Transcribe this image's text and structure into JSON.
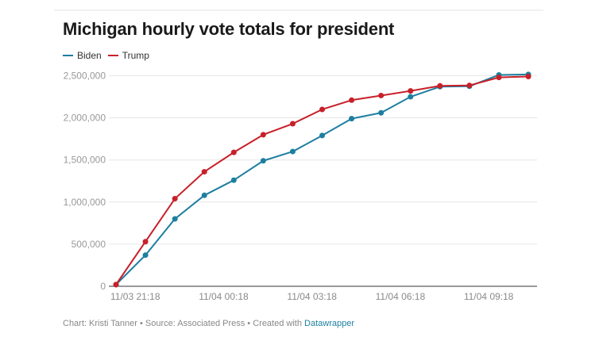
{
  "chart_data": {
    "type": "line",
    "title": "Michigan hourly vote totals for president",
    "xlabel": "",
    "ylabel": "",
    "x": [
      "11/03 21:18",
      "11/03 22:18",
      "11/03 23:18",
      "11/04 00:18",
      "11/04 01:18",
      "11/04 02:18",
      "11/04 03:18",
      "11/04 04:18",
      "11/04 05:18",
      "11/04 06:18",
      "11/04 07:18",
      "11/04 08:18",
      "11/04 09:18",
      "11/04 10:18",
      "11/04 11:18"
    ],
    "x_tick_labels": [
      "11/03 21:18",
      "11/04 00:18",
      "11/04 03:18",
      "11/04 06:18",
      "11/04 09:18"
    ],
    "x_tick_indices": [
      0,
      3,
      6,
      9,
      12
    ],
    "ylim": [
      0,
      2500000
    ],
    "y_ticks": [
      0,
      500000,
      1000000,
      1500000,
      2000000,
      2500000
    ],
    "y_tick_labels": [
      "0",
      "500,000",
      "1,000,000",
      "1,500,000",
      "2,000,000",
      "2,500,000"
    ],
    "grid": true,
    "legend_position": "top-left",
    "series": [
      {
        "name": "Biden",
        "color": "#1d7fa0",
        "values": [
          20000,
          370000,
          800000,
          1080000,
          1260000,
          1490000,
          1600000,
          1790000,
          1990000,
          2060000,
          2250000,
          2370000,
          2375000,
          2510000,
          2515000
        ]
      },
      {
        "name": "Trump",
        "color": "#c8202a",
        "values": [
          20000,
          530000,
          1040000,
          1360000,
          1590000,
          1800000,
          1930000,
          2100000,
          2210000,
          2265000,
          2320000,
          2380000,
          2385000,
          2480000,
          2490000
        ]
      }
    ]
  },
  "footer": {
    "credit": "Chart: Kristi Tanner • Source: Associated Press • Created with ",
    "link": "Datawrapper"
  }
}
